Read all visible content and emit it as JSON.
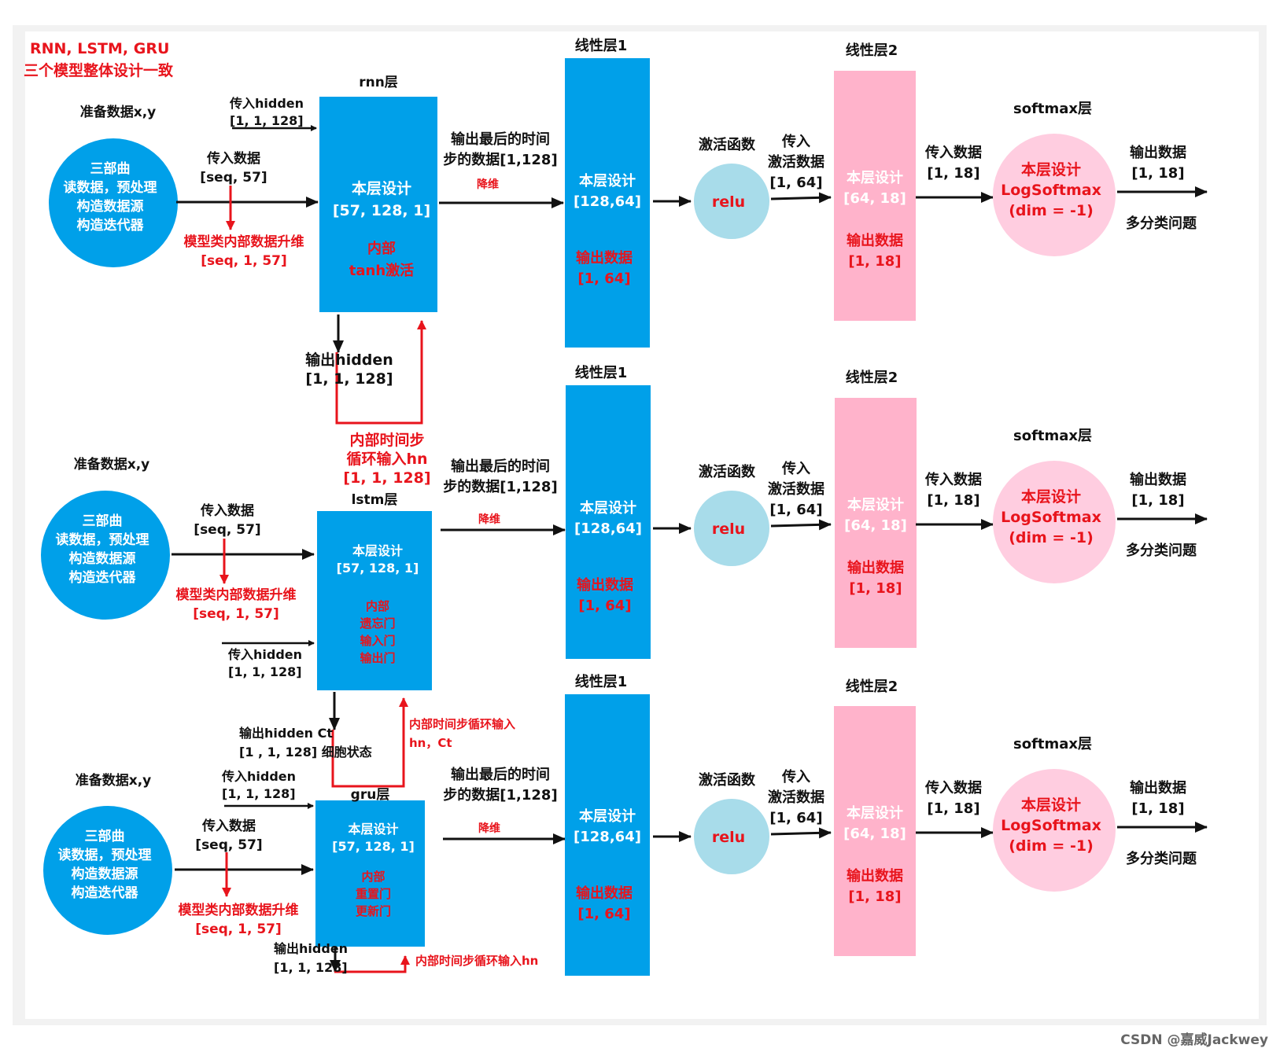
{
  "header": {
    "line1": "RNN, LSTM, GRU",
    "line2": "三个模型整体设计一致"
  },
  "watermark": "CSDN @嘉威Jackwey",
  "rows": [
    {
      "key": "rnn",
      "prep_title": "准备数据x,y",
      "data_circle": [
        "三部曲",
        "读数据，预处理",
        "构造数据源",
        "构造迭代器"
      ],
      "input_data": [
        "传入数据",
        "[seq, 57]"
      ],
      "upsample": [
        "模型类内部数据升维",
        "[seq, 1, 57]"
      ],
      "hidden_in": [
        "传入hidden",
        "[1, 1, 128]"
      ],
      "layer_title": "rnn层",
      "layer_design": [
        "本层设计",
        "[57, 128, 1]"
      ],
      "layer_internal": [
        "内部",
        "tanh激活"
      ],
      "hidden_out": [
        "输出hidden",
        "[1, 1, 128]"
      ],
      "loop_label": [
        "内部时间步",
        "循环输入hn",
        "[1, 1, 128]"
      ],
      "last_step": [
        "输出最后的时间",
        "步的数据[1,128]"
      ],
      "reduce": "降维",
      "linear1_title": "线性层1",
      "linear1_design": [
        "本层设计",
        "[128,64]"
      ],
      "linear1_out": [
        "输出数据",
        "[1, 64]"
      ],
      "act_title": "激活函数",
      "act_name": "relu",
      "act_in": [
        "传入",
        "激活数据",
        "[1, 64]"
      ],
      "linear2_title": "线性层2",
      "linear2_design": [
        "本层设计",
        "[64, 18]"
      ],
      "linear2_out": [
        "输出数据",
        "[1, 18]"
      ],
      "softmax_in": [
        "传入数据",
        "[1, 18]"
      ],
      "softmax_title": "softmax层",
      "softmax_design": [
        "本层设计",
        "LogSoftmax",
        "(dim = -1)"
      ],
      "output": [
        "输出数据",
        "[1, 18]"
      ],
      "task": "多分类问题"
    },
    {
      "key": "lstm",
      "prep_title": "准备数据x,y",
      "data_circle": [
        "三部曲",
        "读数据，预处理",
        "构造数据源",
        "构造迭代器"
      ],
      "input_data": [
        "传入数据",
        "[seq, 57]"
      ],
      "upsample": [
        "模型类内部数据升维",
        "[seq, 1, 57]"
      ],
      "hidden_in": [
        "传入hidden",
        "[1, 1, 128]"
      ],
      "layer_title": "lstm层",
      "layer_design": [
        "本层设计",
        "[57, 128, 1]"
      ],
      "layer_internal": [
        "内部",
        "遗忘门",
        "输入门",
        "输出门"
      ],
      "hidden_out": [
        "输出hidden   Ct",
        "[1 , 1, 128] 细胞状态"
      ],
      "loop_label": [
        "内部时间步循环输入",
        "hn，Ct"
      ],
      "last_step": [
        "输出最后的时间",
        "步的数据[1,128]"
      ],
      "reduce": "降维",
      "linear1_title": "线性层1",
      "linear1_design": [
        "本层设计",
        "[128,64]"
      ],
      "linear1_out": [
        "输出数据",
        "[1, 64]"
      ],
      "act_title": "激活函数",
      "act_name": "relu",
      "act_in": [
        "传入",
        "激活数据",
        "[1, 64]"
      ],
      "linear2_title": "线性层2",
      "linear2_design": [
        "本层设计",
        "[64, 18]"
      ],
      "linear2_out": [
        "输出数据",
        "[1, 18]"
      ],
      "softmax_in": [
        "传入数据",
        "[1, 18]"
      ],
      "softmax_title": "softmax层",
      "softmax_design": [
        "本层设计",
        "LogSoftmax",
        "(dim = -1)"
      ],
      "output": [
        "输出数据",
        "[1, 18]"
      ],
      "task": "多分类问题"
    },
    {
      "key": "gru",
      "prep_title": "准备数据x,y",
      "data_circle": [
        "三部曲",
        "读数据，预处理",
        "构造数据源",
        "构造迭代器"
      ],
      "input_data": [
        "传入数据",
        "[seq, 57]"
      ],
      "upsample": [
        "模型类内部数据升维",
        "[seq, 1, 57]"
      ],
      "hidden_in": [
        "传入hidden",
        "[1, 1, 128]"
      ],
      "layer_title": "gru层",
      "layer_design": [
        "本层设计",
        "[57, 128, 1]"
      ],
      "layer_internal": [
        "内部",
        "重置门",
        "更新门"
      ],
      "hidden_out": [
        "输出hidden",
        "[1, 1, 128]"
      ],
      "loop_label": [
        "内部时间步循环输入hn"
      ],
      "last_step": [
        "输出最后的时间",
        "步的数据[1,128]"
      ],
      "reduce": "降维",
      "linear1_title": "线性层1",
      "linear1_design": [
        "本层设计",
        "[128,64]"
      ],
      "linear1_out": [
        "输出数据",
        "[1, 64]"
      ],
      "act_title": "激活函数",
      "act_name": "relu",
      "act_in": [
        "传入",
        "激活数据",
        "[1, 64]"
      ],
      "linear2_title": "线性层2",
      "linear2_design": [
        "本层设计",
        "[64, 18]"
      ],
      "linear2_out": [
        "输出数据",
        "[1, 18]"
      ],
      "softmax_in": [
        "传入数据",
        "[1, 18]"
      ],
      "softmax_title": "softmax层",
      "softmax_design": [
        "本层设计",
        "LogSoftmax",
        "(dim = -1)"
      ],
      "output": [
        "输出数据",
        "[1, 18]"
      ],
      "task": "多分类问题"
    }
  ],
  "colors": {
    "blue": "#00a0e9",
    "pink": "#ffb3cb",
    "light_pink": "#ffcde0",
    "relu": "#a8dcea",
    "red": "#e8141c",
    "black": "#111111",
    "white": "#ffffff"
  }
}
